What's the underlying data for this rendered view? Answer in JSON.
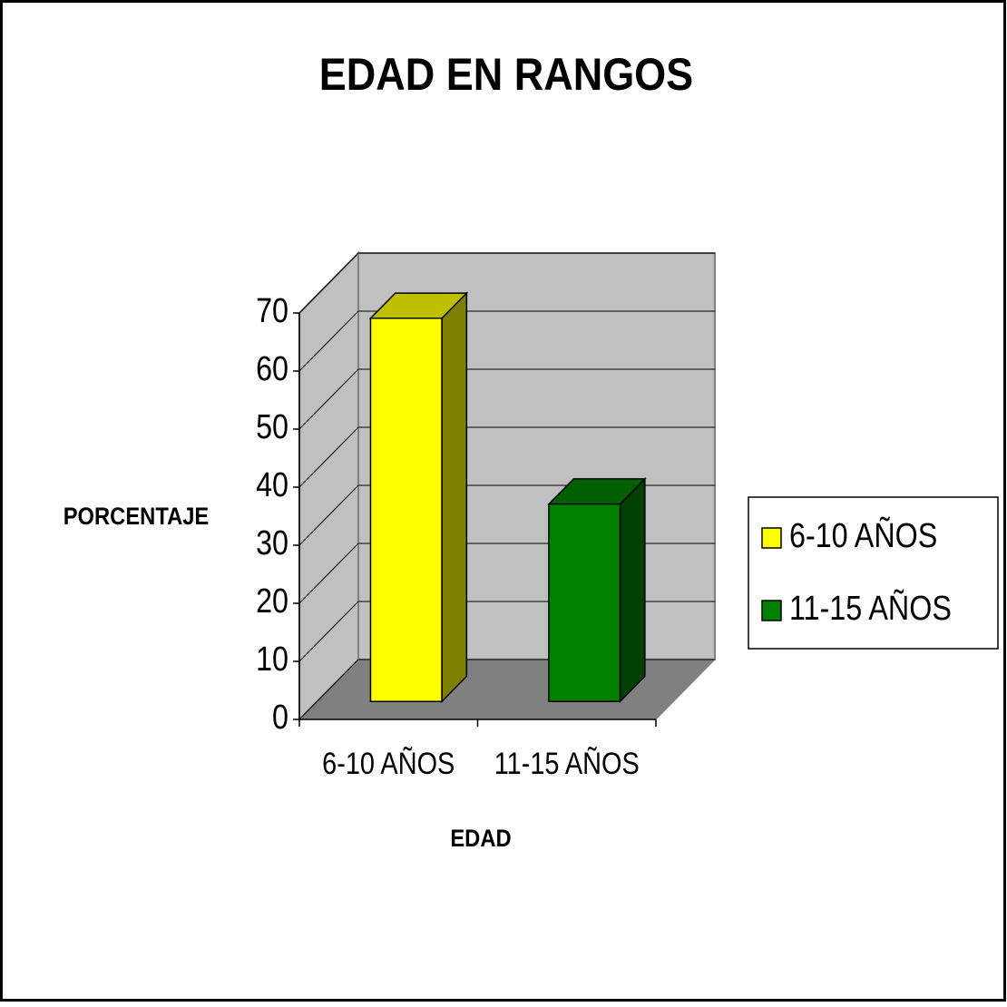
{
  "chart_data": {
    "type": "bar3d",
    "title": "EDAD EN RANGOS",
    "x_label": "EDAD",
    "y_label": "PORCENTAJE",
    "categories": [
      "6-10 AÑOS",
      "11-15 AÑOS"
    ],
    "values": [
      66,
      34
    ],
    "colors": [
      "#ffff00",
      "#008000"
    ],
    "ylim": [
      0,
      70
    ],
    "yticks": [
      0,
      10,
      20,
      30,
      40,
      50,
      60,
      70
    ],
    "grid": true,
    "legend": "right"
  }
}
